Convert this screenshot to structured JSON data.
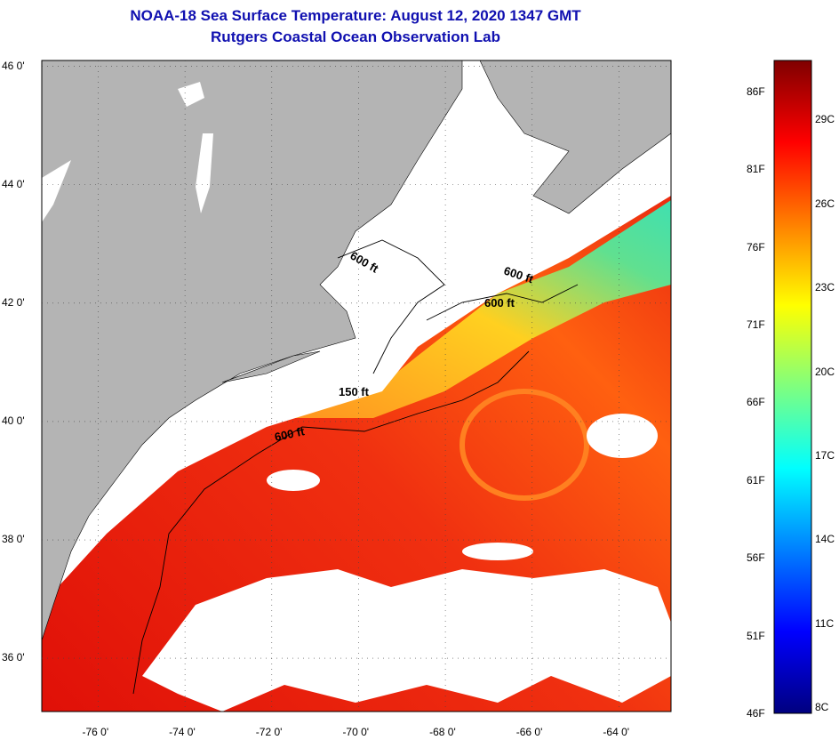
{
  "title": "NOAA-18 Sea Surface Temperature:  August 12, 2020 1347 GMT",
  "subtitle": "Rutgers Coastal Ocean Observation Lab",
  "map": {
    "lat_labels": [
      "46 0'",
      "44 0'",
      "42 0'",
      "40 0'",
      "38 0'",
      "36 0'"
    ],
    "lat_values": [
      46,
      44,
      42,
      40,
      38,
      36
    ],
    "lon_labels": [
      "-76 0'",
      "-74 0'",
      "-72 0'",
      "-70 0'",
      "-68 0'",
      "-66 0'",
      "-64 0'"
    ],
    "lon_values": [
      -76,
      -74,
      -72,
      -70,
      -68,
      -66,
      -64
    ],
    "lat_range": [
      35.1,
      46.1
    ],
    "lon_range": [
      -77.3,
      -62.8
    ],
    "contour_labels": [
      "600 ft",
      "600 ft",
      "600 ft",
      "150 ft",
      "600 ft"
    ],
    "land_color": "#b4b4b4",
    "cloud_color": "#ffffff"
  },
  "colorbar": {
    "f_labels": [
      "86F",
      "81F",
      "76F",
      "71F",
      "66F",
      "61F",
      "56F",
      "51F",
      "46F"
    ],
    "f_values": [
      86,
      81,
      76,
      71,
      66,
      61,
      56,
      51,
      46
    ],
    "c_labels": [
      "29C",
      "26C",
      "23C",
      "20C",
      "17C",
      "14C",
      "11C",
      "8C"
    ],
    "c_values": [
      29,
      26,
      23,
      20,
      17,
      14,
      11,
      8
    ],
    "range_f": [
      46,
      88
    ],
    "colors": [
      "#00007f",
      "#0000ff",
      "#007fff",
      "#00ffff",
      "#7fff7f",
      "#ffff00",
      "#ff7f00",
      "#ff0000",
      "#7f0000"
    ]
  }
}
